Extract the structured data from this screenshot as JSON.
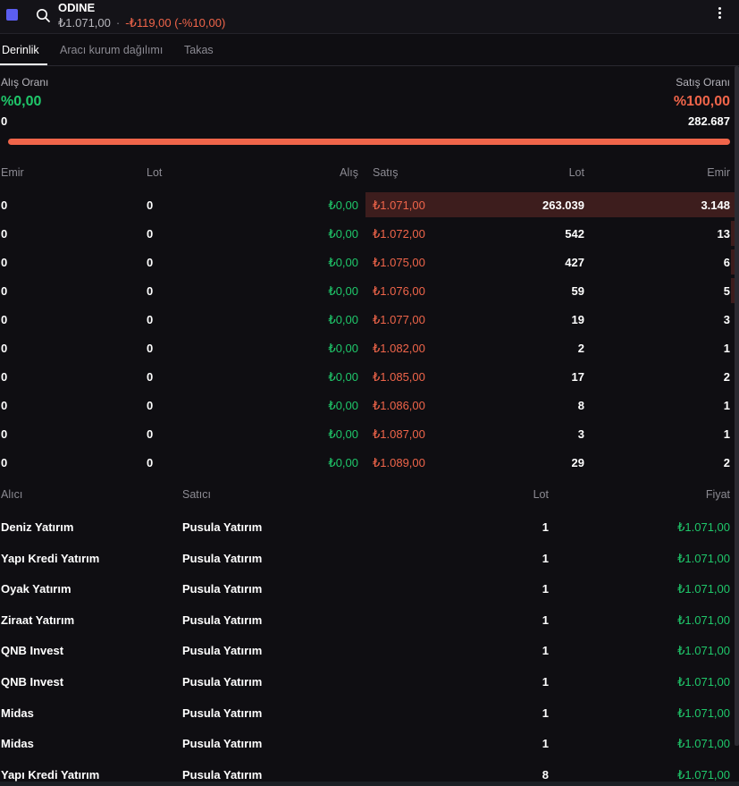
{
  "header": {
    "ticker": "ODINE",
    "last_price": "₺1.071,00",
    "separator": "·",
    "change": "-₺119,00 (-%10,00)"
  },
  "tabs": [
    {
      "label": "Derinlik",
      "active": true
    },
    {
      "label": "Aracı kurum dağılımı",
      "active": false
    },
    {
      "label": "Takas",
      "active": false
    }
  ],
  "ratios": {
    "buy_label": "Alış Oranı",
    "buy_value": "%0,00",
    "buy_qty": "0",
    "sell_label": "Satış Oranı",
    "sell_value": "%100,00",
    "sell_qty": "282.687",
    "sell_fraction": 1.0
  },
  "depth": {
    "headers": {
      "buy_orders": "Emir",
      "buy_lot": "Lot",
      "bid": "Alış",
      "ask": "Satış",
      "sell_lot": "Lot",
      "sell_orders": "Emir"
    },
    "rows": [
      {
        "buy_orders": "0",
        "buy_lot": "0",
        "bid": "₺0,00",
        "ask": "₺1.071,00",
        "sell_lot": "263.039",
        "sell_orders": "3.148",
        "sell_share": 1.0
      },
      {
        "buy_orders": "0",
        "buy_lot": "0",
        "bid": "₺0,00",
        "ask": "₺1.072,00",
        "sell_lot": "542",
        "sell_orders": "13",
        "sell_share": 0.02
      },
      {
        "buy_orders": "0",
        "buy_lot": "0",
        "bid": "₺0,00",
        "ask": "₺1.075,00",
        "sell_lot": "427",
        "sell_orders": "6",
        "sell_share": 0.016
      },
      {
        "buy_orders": "0",
        "buy_lot": "0",
        "bid": "₺0,00",
        "ask": "₺1.076,00",
        "sell_lot": "59",
        "sell_orders": "5",
        "sell_share": 0.004
      },
      {
        "buy_orders": "0",
        "buy_lot": "0",
        "bid": "₺0,00",
        "ask": "₺1.077,00",
        "sell_lot": "19",
        "sell_orders": "3",
        "sell_share": 0.0
      },
      {
        "buy_orders": "0",
        "buy_lot": "0",
        "bid": "₺0,00",
        "ask": "₺1.082,00",
        "sell_lot": "2",
        "sell_orders": "1",
        "sell_share": 0.0
      },
      {
        "buy_orders": "0",
        "buy_lot": "0",
        "bid": "₺0,00",
        "ask": "₺1.085,00",
        "sell_lot": "17",
        "sell_orders": "2",
        "sell_share": 0.0
      },
      {
        "buy_orders": "0",
        "buy_lot": "0",
        "bid": "₺0,00",
        "ask": "₺1.086,00",
        "sell_lot": "8",
        "sell_orders": "1",
        "sell_share": 0.0
      },
      {
        "buy_orders": "0",
        "buy_lot": "0",
        "bid": "₺0,00",
        "ask": "₺1.087,00",
        "sell_lot": "3",
        "sell_orders": "1",
        "sell_share": 0.0
      },
      {
        "buy_orders": "0",
        "buy_lot": "0",
        "bid": "₺0,00",
        "ask": "₺1.089,00",
        "sell_lot": "29",
        "sell_orders": "2",
        "sell_share": 0.0
      }
    ]
  },
  "trades": {
    "headers": {
      "buyer": "Alıcı",
      "seller": "Satıcı",
      "lot": "Lot",
      "price": "Fiyat"
    },
    "rows": [
      {
        "buyer": "Deniz Yatırım",
        "seller": "Pusula Yatırım",
        "lot": "1",
        "price": "₺1.071,00"
      },
      {
        "buyer": "Yapı Kredi Yatırım",
        "seller": "Pusula Yatırım",
        "lot": "1",
        "price": "₺1.071,00"
      },
      {
        "buyer": "Oyak Yatırım",
        "seller": "Pusula Yatırım",
        "lot": "1",
        "price": "₺1.071,00"
      },
      {
        "buyer": "Ziraat Yatırım",
        "seller": "Pusula Yatırım",
        "lot": "1",
        "price": "₺1.071,00"
      },
      {
        "buyer": "QNB Invest",
        "seller": "Pusula Yatırım",
        "lot": "1",
        "price": "₺1.071,00"
      },
      {
        "buyer": "QNB Invest",
        "seller": "Pusula Yatırım",
        "lot": "1",
        "price": "₺1.071,00"
      },
      {
        "buyer": "Midas",
        "seller": "Pusula Yatırım",
        "lot": "1",
        "price": "₺1.071,00"
      },
      {
        "buyer": "Midas",
        "seller": "Pusula Yatırım",
        "lot": "1",
        "price": "₺1.071,00"
      },
      {
        "buyer": "Yapı Kredi Yatırım",
        "seller": "Pusula Yatırım",
        "lot": "8",
        "price": "₺1.071,00"
      }
    ]
  },
  "colors": {
    "buy": "#1fc76a",
    "sell": "#f0654a",
    "accent": "#5b5ef0"
  },
  "icons": [
    "app-square-icon",
    "search-icon",
    "more-vertical-icon"
  ]
}
